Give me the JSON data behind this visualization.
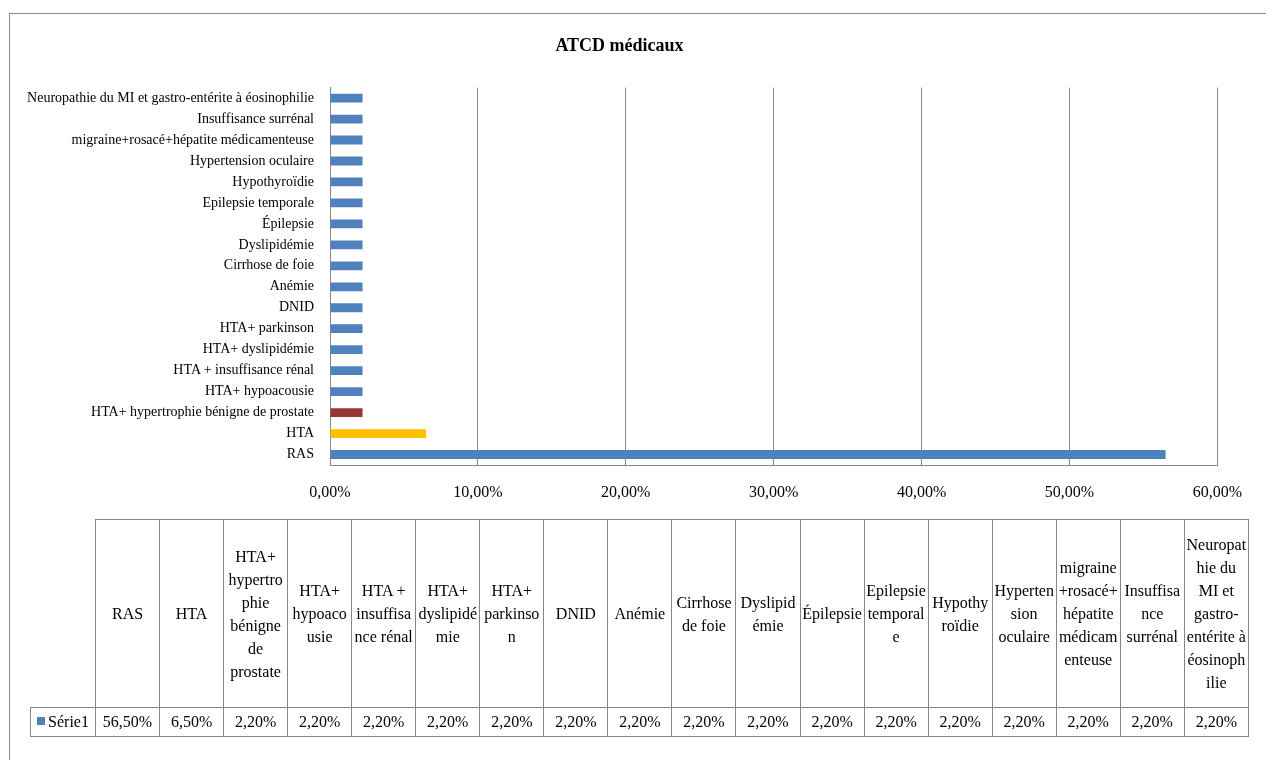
{
  "chart_data": [
    {
      "type": "bar",
      "orientation": "horizontal",
      "title": "ATCD médicaux",
      "categories": [
        "Neuropathie du MI et gastro-entérite à éosinophilie",
        "Insuffisance surrénal",
        "migraine+rosacé+hépatite médicamenteuse",
        "Hypertension oculaire",
        "Hypothyroïdie",
        "Epilepsie temporale",
        "Épilepsie",
        "Dyslipidémie",
        "Cirrhose de foie",
        "Anémie",
        "DNID",
        "HTA+ parkinson",
        "HTA+ dyslipidémie",
        "HTA + insuffisance rénal",
        "HTA+ hypoacousie",
        "HTA+ hypertrophie bénigne de prostate",
        "HTA",
        "RAS"
      ],
      "series": [
        {
          "color": "#4f81bd",
          "colors": [
            "#4f81bd",
            "#4f81bd",
            "#4f81bd",
            "#4f81bd",
            "#4f81bd",
            "#4f81bd",
            "#4f81bd",
            "#4f81bd",
            "#4f81bd",
            "#4f81bd",
            "#4f81bd",
            "#4f81bd",
            "#4f81bd",
            "#4f81bd",
            "#4f81bd",
            "#953735",
            "#ffc000",
            "#4f81bd"
          ],
          "values": [
            2.2,
            2.2,
            2.2,
            2.2,
            2.2,
            2.2,
            2.2,
            2.2,
            2.2,
            2.2,
            2.2,
            2.2,
            2.2,
            2.2,
            2.2,
            2.2,
            6.5,
            56.5
          ]
        }
      ],
      "xlim": [
        0,
        60
      ],
      "xticks": [
        {
          "value": 0,
          "label": "0,00%"
        },
        {
          "value": 10,
          "label": "10,00%"
        },
        {
          "value": 20,
          "label": "20,00%"
        },
        {
          "value": 30,
          "label": "30,00%"
        },
        {
          "value": 40,
          "label": "40,00%"
        },
        {
          "value": 50,
          "label": "50,00%"
        },
        {
          "value": 60,
          "label": "60,00%"
        }
      ],
      "grid": "x"
    },
    {
      "type": "other",
      "categories": [
        "RAS",
        "HTA",
        "HTA+ hypertrophie bénigne de prostate",
        "HTA+ hypoacousie",
        "HTA + insuffisance rénal",
        "HTA+ dyslipidémie",
        "HTA+ parkinson",
        "DNID",
        "Anémie",
        "Cirrhose de foie",
        "Dyslipidémie",
        "Épilepsie",
        "Epilepsie temporale",
        "Hypothyroïdie",
        "Hypertension oculaire",
        "migraine+rosacé+hépatite médicamenteuse",
        "Insuffisance surrénal",
        "Neuropathie du MI et gastro-entérite à éosinophilie"
      ],
      "series": [
        {
          "name": "Série1",
          "color": "#4f81bd",
          "values": [
            56.5,
            6.5,
            2.2,
            2.2,
            2.2,
            2.2,
            2.2,
            2.2,
            2.2,
            2.2,
            2.2,
            2.2,
            2.2,
            2.2,
            2.2,
            2.2,
            2.2,
            2.2
          ],
          "value_labels": [
            "56,50%",
            "6,50%",
            "2,20%",
            "2,20%",
            "2,20%",
            "2,20%",
            "2,20%",
            "2,20%",
            "2,20%",
            "2,20%",
            "2,20%",
            "2,20%",
            "2,20%",
            "2,20%",
            "2,20%",
            "2,20%",
            "2,20%",
            "2,20%"
          ]
        }
      ],
      "legend": "left"
    }
  ]
}
